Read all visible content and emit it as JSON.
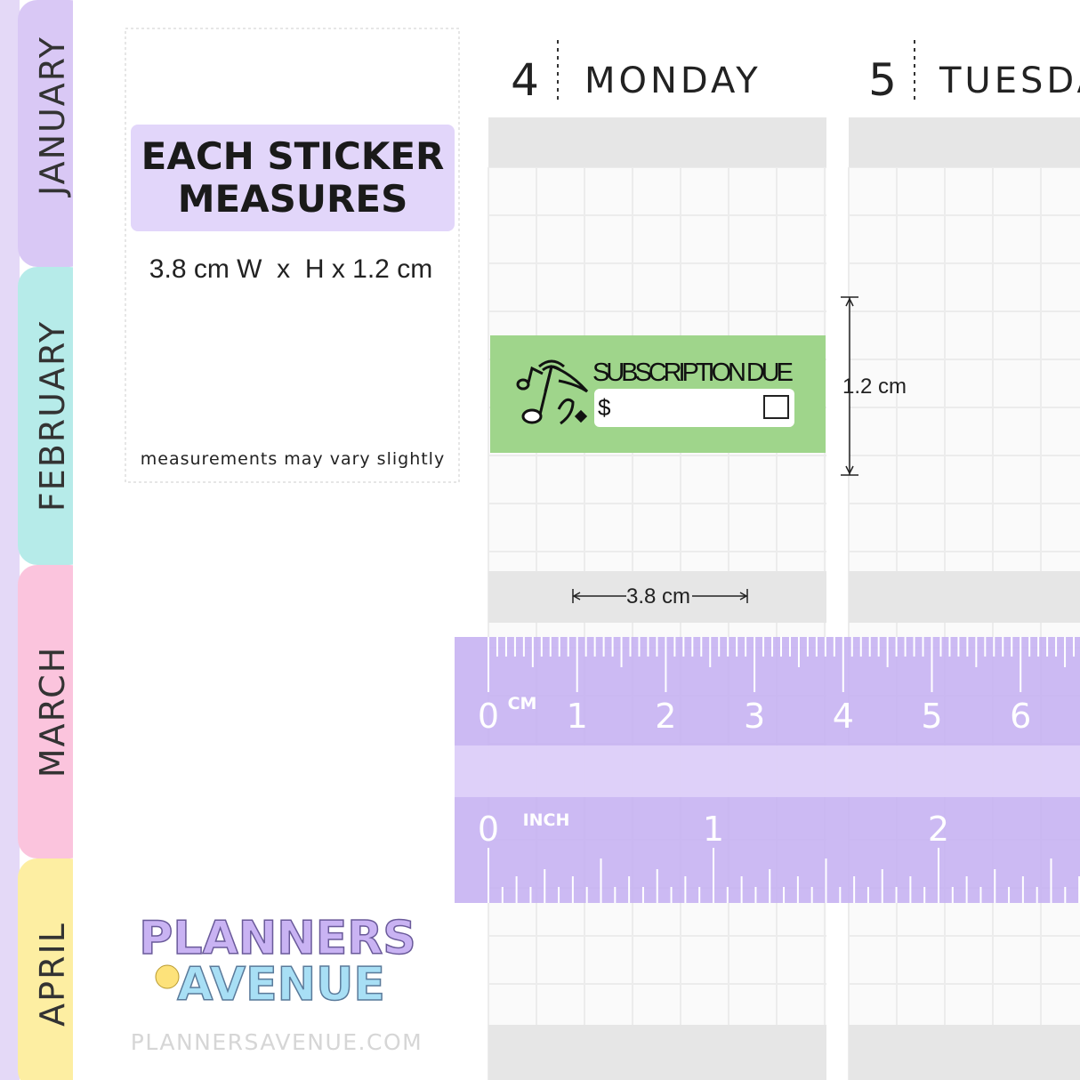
{
  "tabs": [
    "JANUARY",
    "FEBRUARY",
    "MARCH",
    "APRIL"
  ],
  "info": {
    "title": "EACH STICKER MEASURES",
    "measurement": "3.8 cm W  x  H x 1.2 cm",
    "note": "measurements may vary slightly"
  },
  "days": [
    {
      "number": "4",
      "name": "MONDAY"
    },
    {
      "number": "5",
      "name": "TUESDAY"
    }
  ],
  "sticker": {
    "text": "SUBSCRIPTION DUE",
    "currency": "$"
  },
  "dimensions": {
    "width": "3.8 cm",
    "height": "1.2 cm"
  },
  "ruler": {
    "cm_label": "CM",
    "cm_numbers": [
      "0",
      "1",
      "2",
      "3",
      "4",
      "5",
      "6"
    ],
    "inch_label": "INCH",
    "inch_numbers": [
      "0",
      "1",
      "2"
    ]
  },
  "logo": {
    "line1": "PLANNERS",
    "line2": "AVENUE",
    "website": "PLANNERSAVENUE.COM"
  }
}
